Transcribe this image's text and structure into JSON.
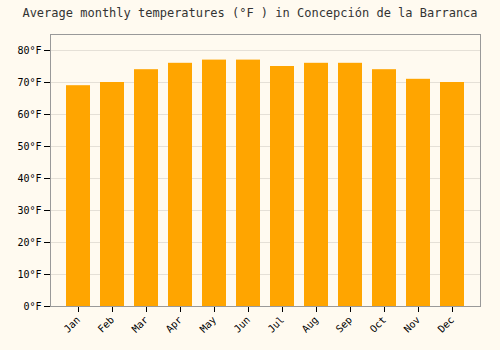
{
  "chart_data": {
    "type": "bar",
    "title": "Average monthly temperatures (°F ) in Concepción de la Barranca",
    "categories": [
      "Jan",
      "Feb",
      "Mar",
      "Apr",
      "May",
      "Jun",
      "Jul",
      "Aug",
      "Sep",
      "Oct",
      "Nov",
      "Dec"
    ],
    "values": [
      69,
      70,
      74,
      76,
      77,
      77,
      75,
      76,
      76,
      74,
      71,
      70
    ],
    "color": "#FFA500",
    "ylim": [
      0,
      85
    ],
    "yticks": [
      {
        "value": 0,
        "label": "0°F"
      },
      {
        "value": 10,
        "label": "10°F"
      },
      {
        "value": 20,
        "label": "20°F"
      },
      {
        "value": 30,
        "label": "30°F"
      },
      {
        "value": 40,
        "label": "40°F"
      },
      {
        "value": 50,
        "label": "50°F"
      },
      {
        "value": 60,
        "label": "60°F"
      },
      {
        "value": 70,
        "label": "70°F"
      },
      {
        "value": 80,
        "label": "80°F"
      }
    ],
    "grid": true
  }
}
